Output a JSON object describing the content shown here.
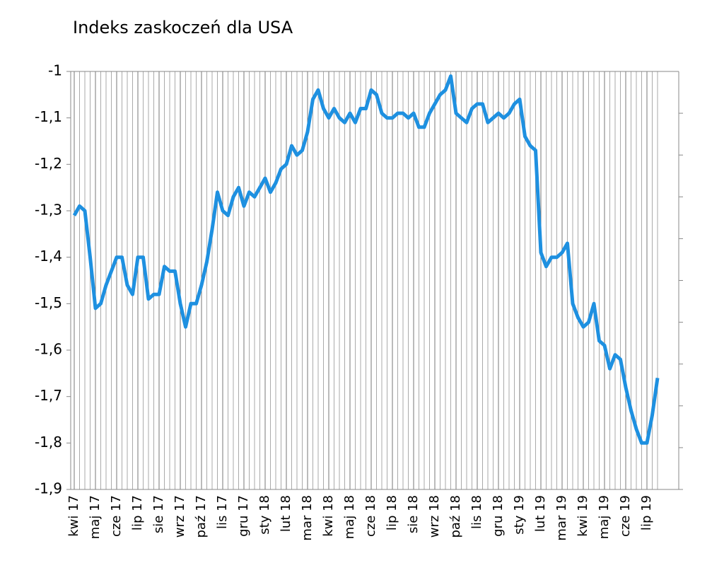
{
  "chart_data": {
    "type": "line",
    "title": "Indeks zaskoczeń dla USA",
    "categories": [
      "kwi 17",
      null,
      null,
      null,
      "maj 17",
      null,
      null,
      null,
      "cze 17",
      null,
      null,
      null,
      "lip 17",
      null,
      null,
      null,
      "sie 17",
      null,
      null,
      null,
      "wrz 17",
      null,
      null,
      null,
      "paź 17",
      null,
      null,
      null,
      "lis 17",
      null,
      null,
      null,
      "gru 17",
      null,
      null,
      null,
      "sty 18",
      null,
      null,
      null,
      "lut 18",
      null,
      null,
      null,
      "mar 18",
      null,
      null,
      null,
      "kwi 18",
      null,
      null,
      null,
      "maj 18",
      null,
      null,
      null,
      "cze 18",
      null,
      null,
      null,
      "lip 18",
      null,
      null,
      null,
      "sie 18",
      null,
      null,
      null,
      "wrz 18",
      null,
      null,
      null,
      "paź 18",
      null,
      null,
      null,
      "lis 18",
      null,
      null,
      null,
      "gru 18",
      null,
      null,
      null,
      "sty 19",
      null,
      null,
      null,
      "lut 19",
      null,
      null,
      null,
      "mar 19",
      null,
      null,
      null,
      "kwi 19",
      null,
      null,
      null,
      "maj 19",
      null,
      null,
      null,
      "cze 19",
      null,
      null,
      null,
      "lip 19",
      null,
      null
    ],
    "series": [
      {
        "name": "Indeks zaskoczeń",
        "color": "#1e90e0",
        "values": [
          -1.31,
          -1.29,
          -1.3,
          -1.4,
          -1.51,
          -1.5,
          -1.46,
          -1.43,
          -1.4,
          -1.4,
          -1.46,
          -1.48,
          -1.4,
          -1.4,
          -1.49,
          -1.48,
          -1.48,
          -1.42,
          -1.43,
          -1.43,
          -1.5,
          -1.55,
          -1.5,
          -1.5,
          -1.46,
          -1.41,
          -1.34,
          -1.26,
          -1.3,
          -1.31,
          -1.27,
          -1.25,
          -1.29,
          -1.26,
          -1.27,
          -1.25,
          -1.23,
          -1.26,
          -1.24,
          -1.21,
          -1.2,
          -1.16,
          -1.18,
          -1.17,
          -1.13,
          -1.06,
          -1.04,
          -1.08,
          -1.1,
          -1.08,
          -1.1,
          -1.11,
          -1.09,
          -1.11,
          -1.08,
          -1.08,
          -1.04,
          -1.05,
          -1.09,
          -1.1,
          -1.1,
          -1.09,
          -1.09,
          -1.1,
          -1.09,
          -1.12,
          -1.12,
          -1.09,
          -1.07,
          -1.05,
          -1.04,
          -1.01,
          -1.09,
          -1.1,
          -1.11,
          -1.08,
          -1.07,
          -1.07,
          -1.11,
          -1.1,
          -1.09,
          -1.1,
          -1.09,
          -1.07,
          -1.06,
          -1.14,
          -1.16,
          -1.17,
          -1.39,
          -1.42,
          -1.4,
          -1.4,
          -1.39,
          -1.37,
          -1.5,
          -1.53,
          -1.55,
          -1.54,
          -1.5,
          -1.58,
          -1.59,
          -1.64,
          -1.61,
          -1.62,
          -1.68,
          -1.73,
          -1.77,
          -1.8,
          -1.8,
          -1.74,
          -1.66
        ]
      }
    ],
    "ylim": [
      -1.9,
      -1
    ],
    "yticks": [
      {
        "value": -1.9,
        "label": "-1,9"
      },
      {
        "value": -1.8,
        "label": "-1,8"
      },
      {
        "value": -1.7,
        "label": "-1,7"
      },
      {
        "value": -1.6,
        "label": "-1,6"
      },
      {
        "value": -1.5,
        "label": "-1,5"
      },
      {
        "value": -1.4,
        "label": "-1,4"
      },
      {
        "value": -1.3,
        "label": "-1,3"
      },
      {
        "value": -1.2,
        "label": "-1,2"
      },
      {
        "value": -1.1,
        "label": "-1,1"
      },
      -1
    ],
    "grid": true
  }
}
